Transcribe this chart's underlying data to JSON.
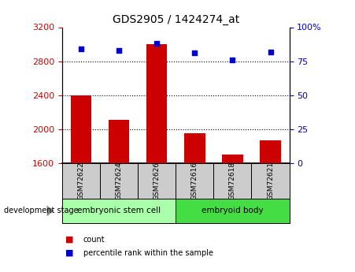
{
  "title": "GDS2905 / 1424274_at",
  "categories": [
    "GSM72622",
    "GSM72624",
    "GSM72626",
    "GSM72616",
    "GSM72618",
    "GSM72621"
  ],
  "bar_values": [
    2400,
    2110,
    3000,
    1955,
    1700,
    1870
  ],
  "dot_values": [
    84,
    83,
    88,
    81,
    76,
    82
  ],
  "bar_color": "#cc0000",
  "dot_color": "#0000cc",
  "ylim_left": [
    1600,
    3200
  ],
  "ylim_right": [
    0,
    100
  ],
  "yticks_left": [
    1600,
    2000,
    2400,
    2800,
    3200
  ],
  "yticks_right": [
    0,
    25,
    50,
    75,
    100
  ],
  "ytick_labels_right": [
    "0",
    "25",
    "50",
    "75",
    "100%"
  ],
  "grid_lines": [
    2000,
    2400,
    2800
  ],
  "stage_groups": [
    {
      "label": "embryonic stem cell",
      "start": 0,
      "end": 3,
      "color": "#aaffaa"
    },
    {
      "label": "embryoid body",
      "start": 3,
      "end": 6,
      "color": "#44dd44"
    }
  ],
  "stage_label": "development stage",
  "legend_count_label": "count",
  "legend_pct_label": "percentile rank within the sample",
  "tick_label_color_left": "#cc0000",
  "tick_label_color_right": "#0000cc",
  "bar_width": 0.55,
  "sample_box_color": "#cccccc",
  "background_color": "#ffffff"
}
